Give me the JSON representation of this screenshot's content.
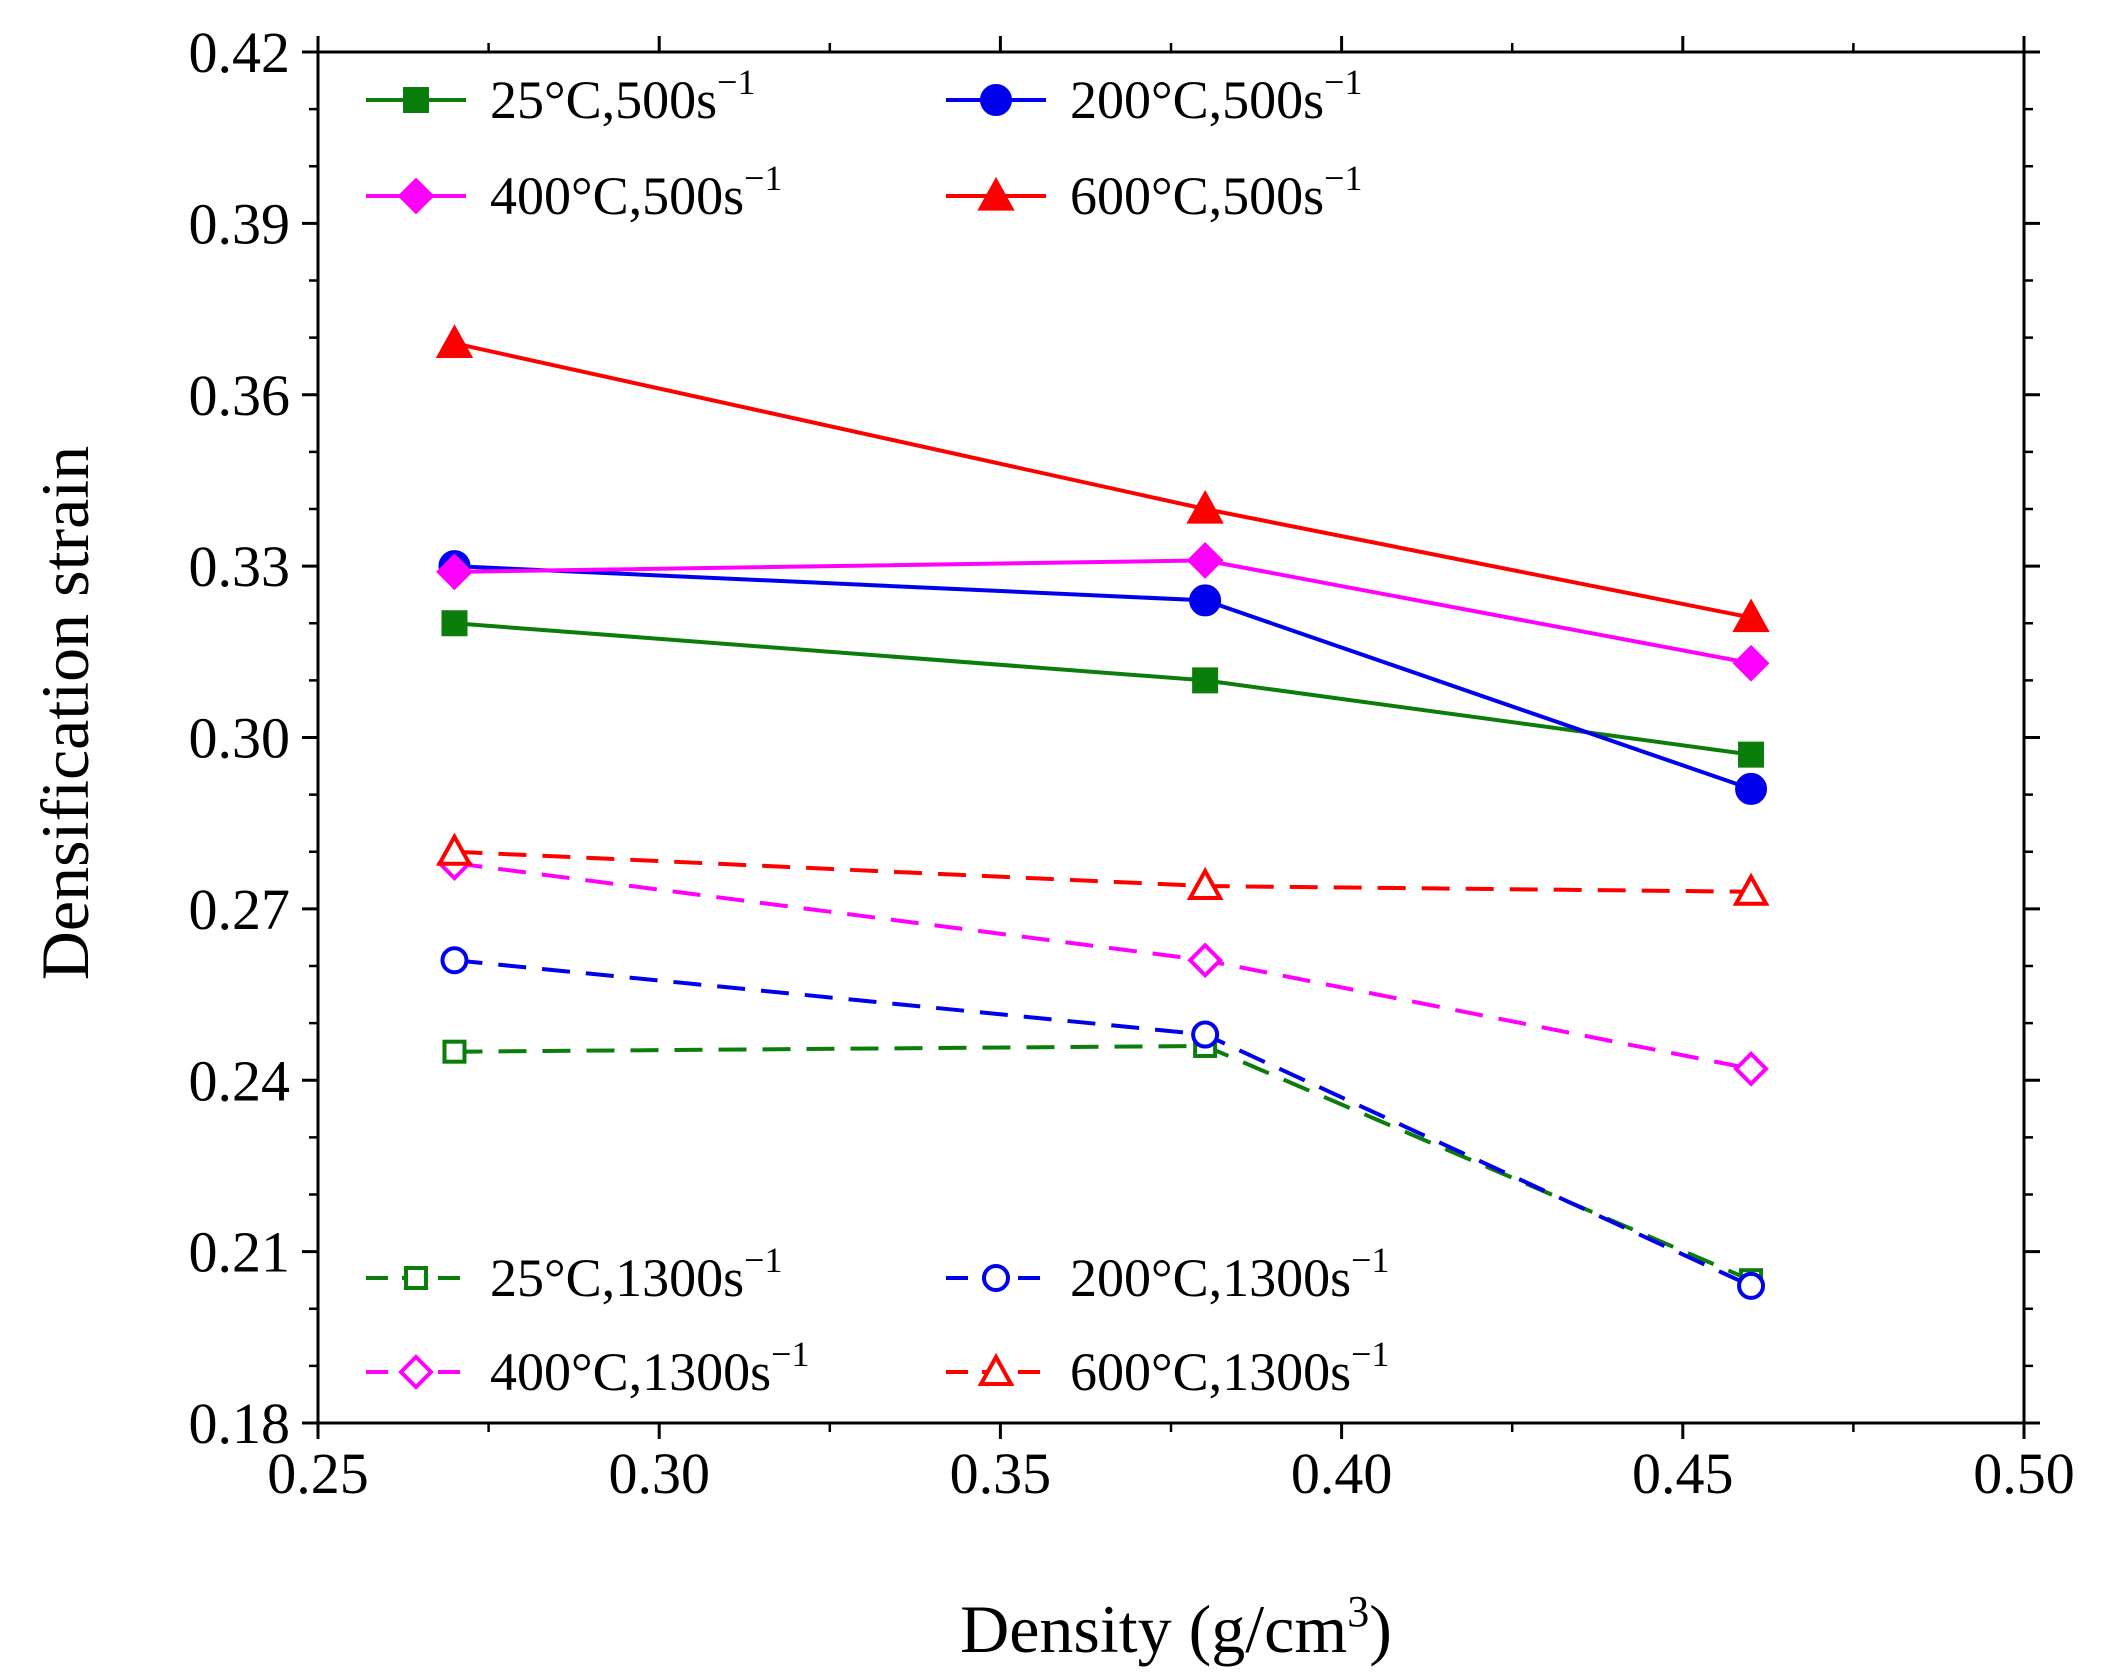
{
  "chart_data": {
    "type": "line",
    "xlabel": "Density (g/cm",
    "xlabel_sup": "3",
    "xlabel_close": ")",
    "ylabel": "Densification strain",
    "xlim": [
      0.25,
      0.5
    ],
    "ylim": [
      0.18,
      0.42
    ],
    "xticks": [
      "0.25",
      "0.30",
      "0.35",
      "0.40",
      "0.45",
      "0.50"
    ],
    "yticks": [
      "0.18",
      "0.21",
      "0.24",
      "0.27",
      "0.30",
      "0.33",
      "0.36",
      "0.39",
      "0.42"
    ],
    "x": [
      0.27,
      0.38,
      0.46
    ],
    "grid": false,
    "series": [
      {
        "name": "25°C,500s",
        "sup": "−1",
        "color": "#0a7d0a",
        "marker": "square",
        "filled": true,
        "dashed": false,
        "values": [
          0.32,
          0.31,
          0.297
        ]
      },
      {
        "name": "200°C,500s",
        "sup": "−1",
        "color": "#0000ee",
        "marker": "circle",
        "filled": true,
        "dashed": false,
        "values": [
          0.33,
          0.324,
          0.291
        ]
      },
      {
        "name": "400°C,500s",
        "sup": "−1",
        "color": "#ff00ff",
        "marker": "diamond",
        "filled": true,
        "dashed": false,
        "values": [
          0.329,
          0.331,
          0.313
        ]
      },
      {
        "name": "600°C,500s",
        "sup": "−1",
        "color": "#ff0000",
        "marker": "triangle",
        "filled": true,
        "dashed": false,
        "values": [
          0.369,
          0.34,
          0.321
        ]
      },
      {
        "name": "25°C,1300s",
        "sup": "−1",
        "color": "#0a7d0a",
        "marker": "square",
        "filled": false,
        "dashed": true,
        "values": [
          0.245,
          0.246,
          0.205
        ]
      },
      {
        "name": "200°C,1300s",
        "sup": "−1",
        "color": "#0000ee",
        "marker": "circle",
        "filled": false,
        "dashed": true,
        "values": [
          0.261,
          0.248,
          0.204
        ]
      },
      {
        "name": "400°C,1300s",
        "sup": "−1",
        "color": "#ff00ff",
        "marker": "diamond",
        "filled": false,
        "dashed": true,
        "values": [
          0.278,
          0.261,
          0.242
        ]
      },
      {
        "name": "600°C,1300s",
        "sup": "−1",
        "color": "#ff0000",
        "marker": "triangle",
        "filled": false,
        "dashed": true,
        "values": [
          0.28,
          0.274,
          0.273
        ]
      }
    ],
    "legend": [
      {
        "placement": "top-left",
        "series_order": [
          0,
          1,
          2,
          3
        ]
      },
      {
        "placement": "bottom-left",
        "series_order": [
          4,
          5,
          6,
          7
        ]
      }
    ]
  }
}
